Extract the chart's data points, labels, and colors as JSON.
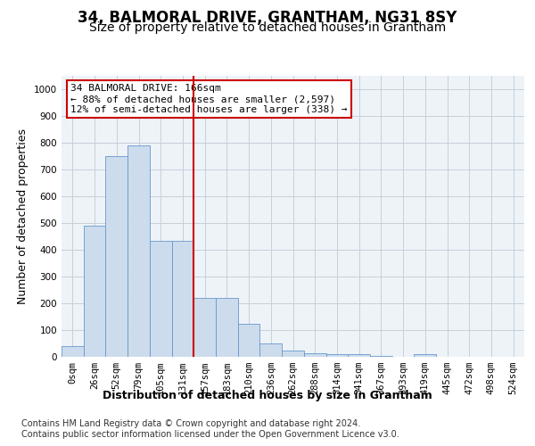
{
  "title1": "34, BALMORAL DRIVE, GRANTHAM, NG31 8SY",
  "title2": "Size of property relative to detached houses in Grantham",
  "xlabel": "Distribution of detached houses by size in Grantham",
  "ylabel": "Number of detached properties",
  "bar_labels": [
    "0sqm",
    "26sqm",
    "52sqm",
    "79sqm",
    "105sqm",
    "131sqm",
    "157sqm",
    "183sqm",
    "210sqm",
    "236sqm",
    "262sqm",
    "288sqm",
    "314sqm",
    "341sqm",
    "367sqm",
    "393sqm",
    "419sqm",
    "445sqm",
    "472sqm",
    "498sqm",
    "524sqm"
  ],
  "bar_values": [
    40,
    490,
    750,
    790,
    435,
    435,
    220,
    220,
    125,
    50,
    25,
    15,
    10,
    10,
    5,
    0,
    10,
    0,
    0,
    0,
    0
  ],
  "bar_color": "#ccdcec",
  "bar_edge_color": "#6699cc",
  "property_line_x": 5.5,
  "annotation_text": "34 BALMORAL DRIVE: 166sqm\n← 88% of detached houses are smaller (2,597)\n12% of semi-detached houses are larger (338) →",
  "annotation_box_color": "white",
  "annotation_box_edge_color": "#cc0000",
  "vline_color": "#cc0000",
  "ylim": [
    0,
    1050
  ],
  "yticks": [
    0,
    100,
    200,
    300,
    400,
    500,
    600,
    700,
    800,
    900,
    1000
  ],
  "footer_line1": "Contains HM Land Registry data © Crown copyright and database right 2024.",
  "footer_line2": "Contains public sector information licensed under the Open Government Licence v3.0.",
  "bg_color": "#eef3f8",
  "grid_color": "#c5d0db",
  "title1_fontsize": 12,
  "title2_fontsize": 10,
  "axis_label_fontsize": 9,
  "tick_fontsize": 7.5,
  "footer_fontsize": 7,
  "annotation_fontsize": 8
}
